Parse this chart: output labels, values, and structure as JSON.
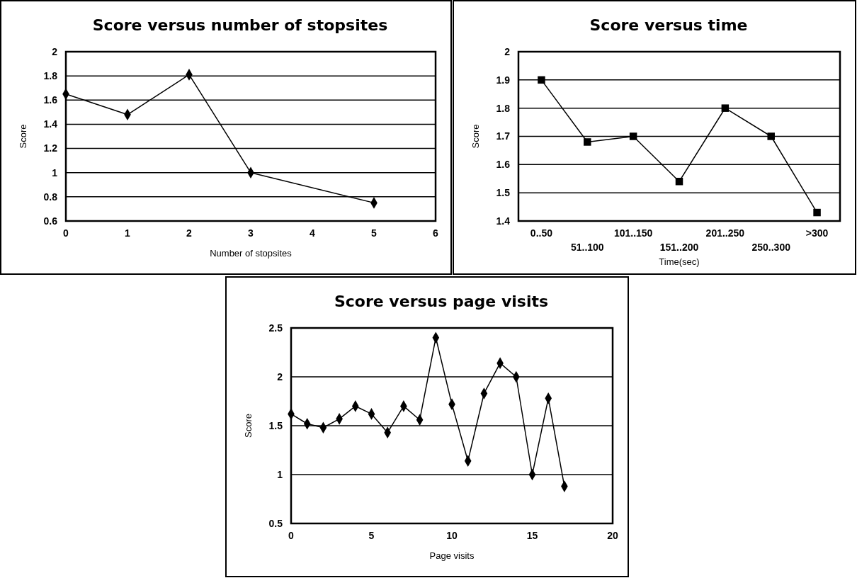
{
  "chart_data": [
    {
      "type": "line",
      "title": "Score versus number of stopsites",
      "xlabel": "Number of stopsites",
      "ylabel": "Score",
      "x": [
        0,
        1,
        2,
        3,
        5
      ],
      "values": [
        1.65,
        1.48,
        1.81,
        1.0,
        0.75
      ],
      "color": "#000000",
      "xlim": [
        0,
        6
      ],
      "xticks": [
        0,
        1,
        2,
        3,
        4,
        5,
        6
      ],
      "ylim": [
        0.6,
        2
      ],
      "yticks": [
        0.6,
        0.8,
        1,
        1.2,
        1.4,
        1.6,
        1.8,
        2
      ],
      "grid": "y",
      "marker": "diamond"
    },
    {
      "type": "line",
      "title": "Score versus time",
      "xlabel": "Time(sec)",
      "ylabel": "Score",
      "categories": [
        "0..50",
        "51..100",
        "101..150",
        "151..200",
        "201..250",
        "250..300",
        ">300"
      ],
      "values": [
        1.9,
        1.68,
        1.7,
        1.54,
        1.8,
        1.7,
        1.43
      ],
      "color": "#000000",
      "ylim": [
        1.4,
        2
      ],
      "yticks": [
        1.4,
        1.5,
        1.6,
        1.7,
        1.8,
        1.9,
        2
      ],
      "grid": "y",
      "marker": "square"
    },
    {
      "type": "line",
      "title": "Score versus page visits",
      "xlabel": "Page visits",
      "ylabel": "Score",
      "x": [
        0,
        1,
        2,
        3,
        4,
        5,
        6,
        7,
        8,
        9,
        10,
        11,
        12,
        13,
        14,
        15,
        16,
        17
      ],
      "values": [
        1.62,
        1.52,
        1.48,
        1.57,
        1.7,
        1.62,
        1.43,
        1.7,
        1.56,
        2.4,
        1.72,
        1.14,
        1.83,
        2.14,
        2.0,
        1.0,
        1.78,
        0.88
      ],
      "color": "#000000",
      "xlim": [
        0,
        20
      ],
      "xticks": [
        0,
        5,
        10,
        15,
        20
      ],
      "ylim": [
        0.5,
        2.5
      ],
      "yticks": [
        0.5,
        1,
        1.5,
        2,
        2.5
      ],
      "grid": "y",
      "marker": "diamond"
    }
  ]
}
